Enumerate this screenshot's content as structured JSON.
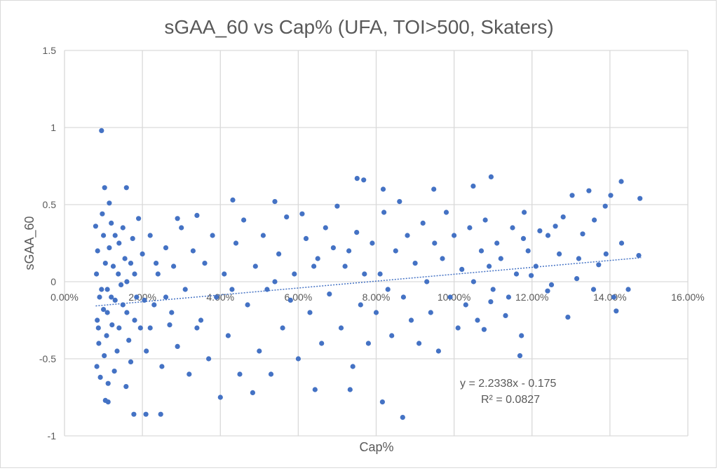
{
  "chart_data": {
    "type": "scatter",
    "title": "sGAA_60 vs Cap% (UFA, TOI>500, Skaters)",
    "xlabel": "Cap%",
    "ylabel": "sGAA_60",
    "xlim": [
      0,
      16
    ],
    "ylim": [
      -1,
      1.5
    ],
    "x_ticks": [
      "0.00%",
      "2.00%",
      "4.00%",
      "6.00%",
      "8.00%",
      "10.00%",
      "12.00%",
      "14.00%",
      "16.00%"
    ],
    "y_ticks": [
      "-1",
      "-0.5",
      "0",
      "0.5",
      "1",
      "1.5"
    ],
    "grid": true,
    "marker_color": "#4472c4",
    "trendline": {
      "type": "linear",
      "slope": 2.2338,
      "intercept": -0.175,
      "x_range_pct": [
        0.8,
        14.8
      ],
      "equation": "y = 2.2338x - 0.175",
      "r_squared": "R² = 0.0827"
    },
    "points": [
      [
        0.95,
        0.98
      ],
      [
        1.03,
        0.61
      ],
      [
        1.59,
        0.61
      ],
      [
        1.15,
        0.51
      ],
      [
        1.78,
        -0.86
      ],
      [
        2.09,
        -0.86
      ],
      [
        2.47,
        -0.86
      ],
      [
        1.05,
        -0.77
      ],
      [
        1.12,
        -0.78
      ],
      [
        4.32,
        0.53
      ],
      [
        7.51,
        0.67
      ],
      [
        7.68,
        0.66
      ],
      [
        8.18,
        0.6
      ],
      [
        8.68,
        -0.88
      ],
      [
        8.16,
        -0.78
      ],
      [
        10.95,
        0.68
      ],
      [
        10.49,
        0.62
      ],
      [
        14.29,
        0.65
      ],
      [
        14.77,
        0.54
      ],
      [
        14.74,
        0.17
      ],
      [
        14.02,
        0.56
      ],
      [
        13.46,
        0.59
      ],
      [
        13.03,
        0.56
      ],
      [
        13.88,
        0.49
      ],
      [
        11.69,
        -0.48
      ],
      [
        14.16,
        -0.19
      ],
      [
        9.48,
        0.6
      ],
      [
        6.43,
        -0.7
      ],
      [
        7.33,
        -0.7
      ],
      [
        4.0,
        -0.75
      ],
      [
        4.83,
        -0.72
      ],
      [
        12.92,
        -0.23
      ],
      [
        14.3,
        0.25
      ],
      [
        13.71,
        0.11
      ],
      [
        13.3,
        0.31
      ],
      [
        12.41,
        0.3
      ],
      [
        12.7,
        0.18
      ],
      [
        11.98,
        0.04
      ],
      [
        11.78,
        0.28
      ],
      [
        12.4,
        -0.06
      ],
      [
        13.15,
        0.02
      ],
      [
        13.58,
        -0.05
      ],
      [
        14.47,
        -0.05
      ],
      [
        11.73,
        -0.35
      ],
      [
        11.32,
        -0.22
      ],
      [
        10.94,
        -0.13
      ],
      [
        10.77,
        -0.31
      ],
      [
        5.4,
        0.52
      ],
      [
        7.0,
        0.49
      ],
      [
        6.1,
        0.44
      ],
      [
        3.4,
        0.43
      ],
      [
        2.9,
        0.41
      ],
      [
        0.8,
        0.36
      ],
      [
        0.85,
        0.2
      ],
      [
        0.82,
        0.05
      ],
      [
        0.9,
        -0.1
      ],
      [
        0.84,
        -0.25
      ],
      [
        0.88,
        -0.4
      ],
      [
        0.83,
        -0.55
      ],
      [
        0.92,
        -0.62
      ],
      [
        0.87,
        -0.3
      ],
      [
        1.0,
        0.3
      ],
      [
        1.05,
        0.12
      ],
      [
        1.1,
        -0.05
      ],
      [
        1.0,
        -0.18
      ],
      [
        1.08,
        -0.35
      ],
      [
        1.02,
        -0.48
      ],
      [
        1.12,
        -0.66
      ],
      [
        0.97,
        0.44
      ],
      [
        1.15,
        0.22
      ],
      [
        1.2,
        0.38
      ],
      [
        1.25,
        0.1
      ],
      [
        1.3,
        -0.12
      ],
      [
        1.22,
        -0.28
      ],
      [
        1.35,
        -0.45
      ],
      [
        1.28,
        -0.58
      ],
      [
        1.4,
        0.25
      ],
      [
        1.45,
        -0.02
      ],
      [
        1.38,
        0.05
      ],
      [
        1.5,
        0.35
      ],
      [
        1.55,
        0.15
      ],
      [
        1.6,
        -0.2
      ],
      [
        1.65,
        -0.38
      ],
      [
        1.7,
        -0.52
      ],
      [
        1.58,
        -0.68
      ],
      [
        1.75,
        0.28
      ],
      [
        1.8,
        0.05
      ],
      [
        1.85,
        -0.1
      ],
      [
        1.9,
        0.41
      ],
      [
        1.95,
        -0.3
      ],
      [
        2.0,
        0.18
      ],
      [
        2.1,
        -0.45
      ],
      [
        2.2,
        0.3
      ],
      [
        2.3,
        -0.15
      ],
      [
        2.4,
        0.05
      ],
      [
        2.5,
        -0.55
      ],
      [
        2.6,
        0.22
      ],
      [
        2.7,
        -0.28
      ],
      [
        2.8,
        0.1
      ],
      [
        2.9,
        -0.42
      ],
      [
        3.0,
        0.35
      ],
      [
        3.1,
        -0.05
      ],
      [
        3.2,
        -0.6
      ],
      [
        3.3,
        0.2
      ],
      [
        3.5,
        -0.25
      ],
      [
        3.6,
        0.12
      ],
      [
        3.7,
        -0.5
      ],
      [
        3.8,
        0.3
      ],
      [
        3.9,
        -0.1
      ],
      [
        4.1,
        0.05
      ],
      [
        4.2,
        -0.35
      ],
      [
        4.4,
        0.25
      ],
      [
        4.5,
        -0.6
      ],
      [
        4.6,
        0.4
      ],
      [
        4.7,
        -0.15
      ],
      [
        4.9,
        0.1
      ],
      [
        5.0,
        -0.45
      ],
      [
        5.1,
        0.3
      ],
      [
        5.2,
        -0.05
      ],
      [
        5.3,
        -0.6
      ],
      [
        5.5,
        0.18
      ],
      [
        5.6,
        -0.3
      ],
      [
        5.7,
        0.42
      ],
      [
        5.8,
        -0.12
      ],
      [
        5.9,
        0.05
      ],
      [
        6.0,
        -0.5
      ],
      [
        6.2,
        0.28
      ],
      [
        6.3,
        -0.2
      ],
      [
        6.5,
        0.15
      ],
      [
        6.6,
        -0.4
      ],
      [
        6.7,
        0.35
      ],
      [
        6.8,
        -0.08
      ],
      [
        6.9,
        0.22
      ],
      [
        7.1,
        -0.3
      ],
      [
        7.2,
        0.1
      ],
      [
        7.4,
        -0.55
      ],
      [
        7.5,
        0.32
      ],
      [
        7.6,
        -0.15
      ],
      [
        7.7,
        0.05
      ],
      [
        7.8,
        -0.4
      ],
      [
        7.9,
        0.25
      ],
      [
        8.0,
        -0.2
      ],
      [
        8.2,
        0.45
      ],
      [
        8.3,
        -0.05
      ],
      [
        8.4,
        -0.35
      ],
      [
        8.5,
        0.2
      ],
      [
        8.6,
        0.52
      ],
      [
        8.7,
        -0.1
      ],
      [
        8.8,
        0.3
      ],
      [
        8.9,
        -0.25
      ],
      [
        9.0,
        0.12
      ],
      [
        9.1,
        -0.4
      ],
      [
        9.2,
        0.38
      ],
      [
        9.3,
        0.0
      ],
      [
        9.4,
        -0.2
      ],
      [
        9.5,
        0.25
      ],
      [
        9.6,
        -0.45
      ],
      [
        9.7,
        0.15
      ],
      [
        9.8,
        0.45
      ],
      [
        9.9,
        -0.1
      ],
      [
        10.0,
        0.3
      ],
      [
        10.1,
        -0.3
      ],
      [
        10.2,
        0.08
      ],
      [
        10.3,
        -0.15
      ],
      [
        10.4,
        0.35
      ],
      [
        10.5,
        0.0
      ],
      [
        10.6,
        -0.25
      ],
      [
        10.7,
        0.2
      ],
      [
        10.8,
        0.4
      ],
      [
        10.9,
        0.1
      ],
      [
        11.0,
        -0.05
      ],
      [
        11.1,
        0.25
      ],
      [
        11.2,
        0.15
      ],
      [
        11.4,
        -0.1
      ],
      [
        11.5,
        0.35
      ],
      [
        11.6,
        0.05
      ],
      [
        11.8,
        0.45
      ],
      [
        11.9,
        0.2
      ],
      [
        12.1,
        0.1
      ],
      [
        12.2,
        0.33
      ],
      [
        12.5,
        -0.02
      ],
      [
        12.6,
        0.36
      ],
      [
        12.8,
        0.42
      ],
      [
        13.2,
        0.15
      ],
      [
        13.6,
        0.4
      ],
      [
        13.9,
        0.18
      ],
      [
        14.1,
        -0.1
      ],
      [
        1.3,
        0.3
      ],
      [
        1.7,
        0.12
      ],
      [
        2.2,
        -0.3
      ],
      [
        2.6,
        -0.1
      ],
      [
        3.4,
        -0.3
      ],
      [
        4.3,
        -0.05
      ],
      [
        5.4,
        0.0
      ],
      [
        6.4,
        0.1
      ],
      [
        7.3,
        0.2
      ],
      [
        8.1,
        0.05
      ],
      [
        1.1,
        -0.2
      ],
      [
        1.4,
        -0.3
      ],
      [
        1.6,
        0.0
      ],
      [
        0.95,
        -0.05
      ],
      [
        1.2,
        -0.1
      ],
      [
        1.5,
        -0.15
      ],
      [
        1.8,
        -0.25
      ],
      [
        2.05,
        -0.12
      ],
      [
        2.35,
        0.12
      ],
      [
        2.75,
        -0.2
      ]
    ]
  }
}
